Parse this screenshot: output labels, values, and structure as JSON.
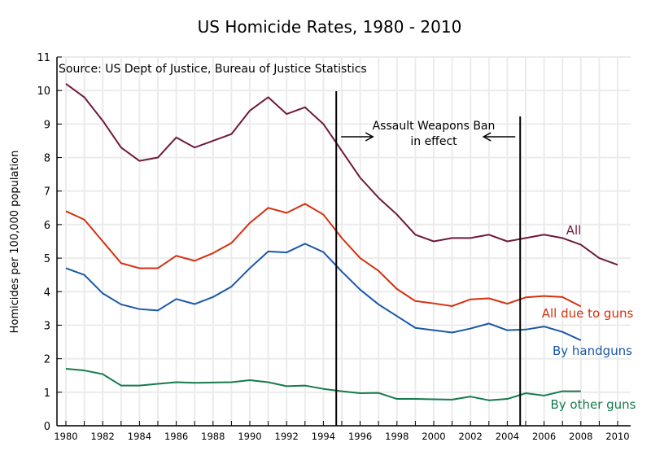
{
  "chart_data": {
    "type": "line",
    "title": "US Homicide Rates, 1980 - 2010",
    "source_note": "Source:  US Dept of Justice, Bureau of Justice Statistics",
    "ylabel": "Homicides per 100,000 population",
    "xlabel": "",
    "xlim": [
      1980,
      2010
    ],
    "ylim": [
      0,
      11
    ],
    "grid": true,
    "x_ticks": [
      "1980",
      "1982",
      "1984",
      "1986",
      "1988",
      "1990",
      "1992",
      "1994",
      "1996",
      "1998",
      "2000",
      "2002",
      "2004",
      "2006",
      "2008",
      "2010"
    ],
    "y_ticks": [
      "0",
      "1",
      "2",
      "3",
      "4",
      "5",
      "6",
      "7",
      "8",
      "9",
      "10",
      "11"
    ],
    "annotation": {
      "lines": [
        "Assault Weapons Ban",
        "in effect"
      ],
      "start": 1994.7,
      "end": 2004.7
    },
    "series": [
      {
        "name": "All",
        "color": "#6e1a3f",
        "start_year": 1980,
        "values": [
          10.2,
          9.8,
          9.1,
          8.3,
          7.9,
          8.0,
          8.6,
          8.3,
          8.5,
          8.7,
          9.4,
          9.8,
          9.3,
          9.5,
          9.0,
          8.2,
          7.4,
          6.8,
          6.3,
          5.7,
          5.5,
          5.6,
          5.6,
          5.7,
          5.5,
          5.6,
          5.7,
          5.6,
          5.4,
          5.0,
          4.8
        ]
      },
      {
        "name": "All due to guns",
        "color": "#d6300e",
        "start_year": 1980,
        "values": [
          6.4,
          6.15,
          5.5,
          4.85,
          4.7,
          4.7,
          5.07,
          4.92,
          5.15,
          5.45,
          6.05,
          6.5,
          6.35,
          6.62,
          6.3,
          5.6,
          5.0,
          4.62,
          4.08,
          3.72,
          3.65,
          3.57,
          3.77,
          3.8,
          3.64,
          3.83,
          3.87,
          3.84,
          3.56
        ]
      },
      {
        "name": "By handguns",
        "color": "#1a57a8",
        "start_year": 1980,
        "values": [
          4.7,
          4.5,
          3.95,
          3.62,
          3.48,
          3.44,
          3.78,
          3.63,
          3.84,
          4.15,
          4.7,
          5.2,
          5.17,
          5.43,
          5.18,
          4.6,
          4.06,
          3.62,
          3.27,
          2.92,
          2.85,
          2.78,
          2.9,
          3.05,
          2.85,
          2.87,
          2.96,
          2.8,
          2.55
        ]
      },
      {
        "name": "By other guns",
        "color": "#157a4e",
        "start_year": 1980,
        "values": [
          1.7,
          1.65,
          1.54,
          1.2,
          1.2,
          1.25,
          1.3,
          1.28,
          1.29,
          1.3,
          1.36,
          1.3,
          1.18,
          1.2,
          1.1,
          1.03,
          0.97,
          0.98,
          0.8,
          0.8,
          0.79,
          0.78,
          0.87,
          0.76,
          0.8,
          0.97,
          0.9,
          1.03,
          1.03
        ]
      }
    ]
  }
}
